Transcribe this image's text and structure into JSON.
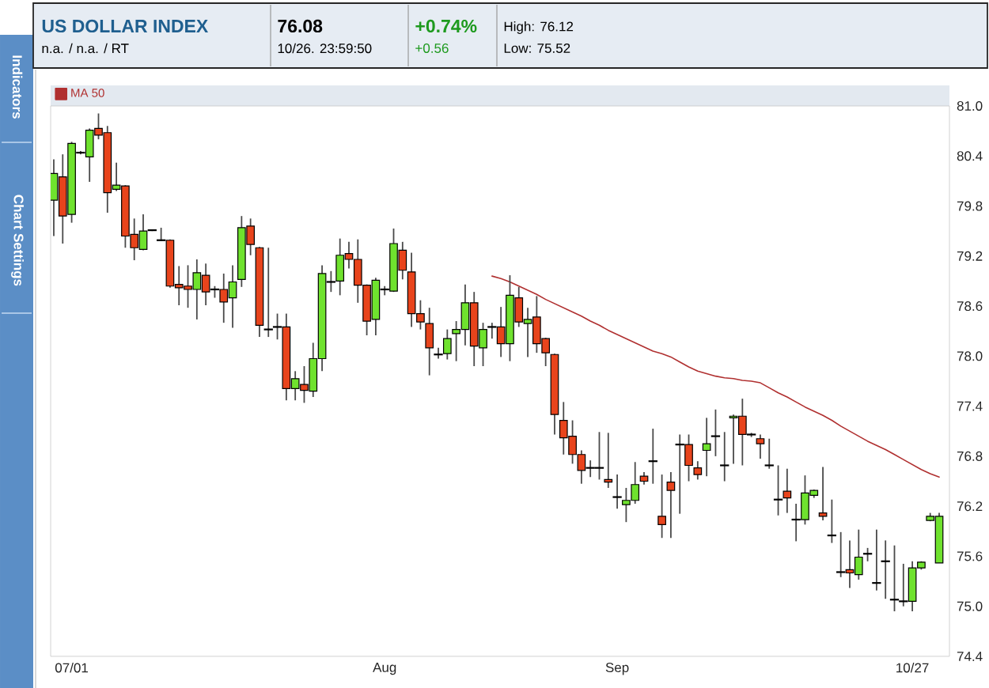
{
  "chart_data": {
    "type": "candlestick",
    "title": "US DOLLAR INDEX",
    "subtitle": "n.a. / n.a. / RT",
    "annotations": [
      "76.08",
      "10/26. 23:59:50",
      "+0.74%",
      "+0.56",
      "High: 76.12",
      "Low: 75.52",
      "Indicators",
      "Chart Settings"
    ],
    "categories": [
      null,
      null,
      "07/01",
      null,
      null,
      null,
      null,
      null,
      null,
      null,
      null,
      null,
      null,
      null,
      null,
      null,
      null,
      null,
      null,
      null,
      null,
      null,
      null,
      null,
      null,
      null,
      null,
      null,
      null,
      null,
      null,
      null,
      null,
      null,
      null,
      null,
      null,
      "Aug",
      null,
      null,
      null,
      null,
      null,
      null,
      null,
      null,
      null,
      null,
      null,
      null,
      null,
      null,
      null,
      null,
      null,
      null,
      null,
      null,
      null,
      null,
      null,
      null,
      null,
      "Sep",
      null,
      null,
      null,
      null,
      null,
      null,
      null,
      null,
      null,
      null,
      null,
      null,
      null,
      null,
      null,
      null,
      null,
      null,
      null,
      null,
      null,
      null,
      null,
      null,
      null,
      null,
      null,
      null,
      null,
      null,
      null,
      null,
      "10/27",
      null,
      null,
      null
    ],
    "ohlc": [
      [
        79.87,
        80.36,
        79.44,
        80.19
      ],
      [
        80.15,
        80.42,
        79.35,
        79.68
      ],
      [
        79.7,
        80.57,
        79.6,
        80.55
      ],
      [
        80.44,
        80.46,
        80.42,
        80.44
      ],
      [
        80.39,
        80.73,
        80.09,
        80.71
      ],
      [
        80.73,
        80.91,
        80.6,
        80.65
      ],
      [
        80.68,
        80.76,
        79.72,
        79.96
      ],
      [
        80.0,
        80.32,
        79.98,
        80.05
      ],
      [
        80.04,
        80.05,
        79.3,
        79.44
      ],
      [
        79.46,
        79.65,
        79.15,
        79.3
      ],
      [
        79.28,
        79.7,
        79.27,
        79.5
      ],
      [
        79.51,
        79.52,
        79.5,
        79.51
      ],
      [
        79.39,
        79.54,
        79.38,
        79.39
      ],
      [
        79.39,
        79.4,
        78.82,
        78.84
      ],
      [
        78.86,
        79.08,
        78.61,
        78.82
      ],
      [
        78.84,
        79.09,
        78.58,
        78.8
      ],
      [
        78.8,
        79.16,
        78.44,
        79.0
      ],
      [
        78.97,
        79.11,
        78.61,
        78.77
      ],
      [
        78.8,
        78.84,
        78.7,
        78.8
      ],
      [
        78.8,
        78.99,
        78.4,
        78.65
      ],
      [
        78.7,
        79.09,
        78.34,
        78.89
      ],
      [
        78.92,
        79.68,
        78.83,
        79.54
      ],
      [
        79.56,
        79.65,
        79.21,
        79.34
      ],
      [
        79.3,
        79.31,
        78.23,
        78.37
      ],
      [
        78.32,
        79.3,
        78.23,
        78.32
      ],
      [
        78.35,
        78.51,
        78.2,
        78.35
      ],
      [
        78.35,
        78.51,
        77.47,
        77.61
      ],
      [
        77.61,
        77.82,
        77.47,
        77.73
      ],
      [
        77.66,
        77.88,
        77.44,
        77.59
      ],
      [
        77.58,
        78.16,
        77.51,
        77.97
      ],
      [
        77.97,
        79.09,
        77.82,
        78.99
      ],
      [
        78.89,
        79.02,
        78.77,
        78.89
      ],
      [
        78.9,
        79.41,
        78.73,
        79.21
      ],
      [
        79.23,
        79.37,
        79.05,
        79.16
      ],
      [
        79.16,
        79.4,
        78.64,
        78.85
      ],
      [
        78.85,
        78.86,
        78.25,
        78.42
      ],
      [
        78.44,
        78.94,
        78.25,
        78.91
      ],
      [
        78.8,
        78.84,
        78.73,
        78.8
      ],
      [
        78.78,
        79.53,
        78.77,
        79.35
      ],
      [
        79.27,
        79.37,
        78.92,
        79.03
      ],
      [
        79.01,
        79.24,
        78.35,
        78.51
      ],
      [
        78.51,
        78.67,
        78.32,
        78.41
      ],
      [
        78.39,
        78.58,
        77.77,
        78.1
      ],
      [
        78.02,
        78.1,
        77.97,
        78.02
      ],
      [
        78.03,
        78.32,
        77.96,
        78.21
      ],
      [
        78.27,
        78.42,
        77.94,
        78.32
      ],
      [
        78.32,
        78.86,
        78.13,
        78.64
      ],
      [
        78.64,
        78.77,
        77.88,
        78.12
      ],
      [
        78.1,
        78.4,
        77.88,
        78.32
      ],
      [
        78.35,
        78.4,
        78.21,
        78.35
      ],
      [
        78.35,
        78.59,
        77.99,
        78.15
      ],
      [
        78.15,
        78.97,
        77.94,
        78.73
      ],
      [
        78.7,
        78.83,
        78.35,
        78.41
      ],
      [
        78.39,
        78.58,
        77.99,
        78.44
      ],
      [
        78.47,
        78.72,
        78.04,
        78.15
      ],
      [
        78.21,
        78.22,
        77.88,
        78.04
      ],
      [
        78.02,
        78.03,
        77.06,
        77.3
      ],
      [
        77.23,
        77.45,
        76.82,
        77.02
      ],
      [
        77.04,
        77.23,
        76.71,
        76.82
      ],
      [
        76.82,
        76.87,
        76.47,
        76.63
      ],
      [
        76.66,
        76.75,
        76.55,
        76.66
      ],
      [
        76.66,
        77.09,
        76.52,
        76.66
      ],
      [
        76.52,
        77.08,
        76.42,
        76.49
      ],
      [
        76.31,
        76.58,
        76.17,
        76.31
      ],
      [
        76.22,
        76.42,
        76.01,
        76.27
      ],
      [
        76.27,
        76.73,
        76.23,
        76.46
      ],
      [
        76.56,
        76.61,
        76.46,
        76.5
      ],
      [
        76.74,
        77.13,
        76.47,
        76.74
      ],
      [
        76.08,
        76.58,
        75.82,
        75.98
      ],
      [
        76.49,
        76.61,
        75.82,
        76.39
      ],
      [
        76.94,
        77.06,
        76.11,
        76.94
      ],
      [
        76.94,
        77.06,
        76.5,
        76.69
      ],
      [
        76.66,
        76.74,
        76.52,
        76.58
      ],
      [
        76.87,
        77.26,
        76.56,
        76.95
      ],
      [
        77.04,
        77.36,
        76.8,
        77.04
      ],
      [
        76.69,
        77.09,
        76.5,
        76.69
      ],
      [
        77.26,
        77.3,
        76.71,
        77.28
      ],
      [
        77.28,
        77.49,
        76.69,
        77.06
      ],
      [
        77.06,
        77.08,
        77.03,
        77.06
      ],
      [
        77.01,
        77.06,
        76.77,
        76.95
      ],
      [
        76.69,
        77.01,
        76.65,
        76.69
      ],
      [
        76.28,
        76.69,
        76.09,
        76.28
      ],
      [
        76.38,
        76.65,
        76.12,
        76.3
      ],
      [
        76.04,
        76.23,
        75.78,
        76.04
      ],
      [
        76.04,
        76.57,
        75.98,
        76.36
      ],
      [
        76.33,
        76.4,
        76.3,
        76.39
      ],
      [
        76.12,
        76.67,
        76.03,
        76.08
      ],
      [
        75.85,
        76.28,
        75.76,
        75.85
      ],
      [
        75.41,
        75.89,
        75.35,
        75.41
      ],
      [
        75.44,
        75.79,
        75.22,
        75.4
      ],
      [
        75.38,
        75.92,
        75.32,
        75.59
      ],
      [
        75.63,
        75.7,
        75.54,
        75.63
      ],
      [
        75.28,
        75.92,
        75.19,
        75.28
      ],
      [
        75.54,
        75.79,
        75.09,
        75.54
      ],
      [
        75.08,
        75.73,
        74.94,
        75.08
      ],
      [
        75.06,
        75.51,
        75.0,
        75.06
      ],
      [
        75.06,
        75.54,
        74.94,
        75.46
      ],
      [
        75.46,
        75.54,
        75.44,
        75.53
      ],
      [
        76.03,
        76.12,
        76.02,
        76.08
      ],
      [
        75.52,
        76.12,
        75.52,
        76.08
      ]
    ],
    "colors": [
      "#6fe22e",
      "#e8441c",
      "#6fe22e",
      "#000000",
      "#6fe22e",
      "#e8441c",
      "#e8441c",
      "#6fe22e",
      "#e8441c",
      "#e8441c",
      "#6fe22e",
      "#000000",
      "#000000",
      "#e8441c",
      "#e8441c",
      "#e8441c",
      "#6fe22e",
      "#e8441c",
      "#000000",
      "#e8441c",
      "#6fe22e",
      "#6fe22e",
      "#e8441c",
      "#e8441c",
      "#000000",
      "#000000",
      "#e8441c",
      "#6fe22e",
      "#e8441c",
      "#6fe22e",
      "#6fe22e",
      "#000000",
      "#6fe22e",
      "#e8441c",
      "#e8441c",
      "#e8441c",
      "#6fe22e",
      "#000000",
      "#6fe22e",
      "#e8441c",
      "#e8441c",
      "#e8441c",
      "#e8441c",
      "#000000",
      "#6fe22e",
      "#6fe22e",
      "#6fe22e",
      "#e8441c",
      "#6fe22e",
      "#000000",
      "#e8441c",
      "#6fe22e",
      "#e8441c",
      "#6fe22e",
      "#e8441c",
      "#e8441c",
      "#e8441c",
      "#e8441c",
      "#e8441c",
      "#e8441c",
      "#000000",
      "#000000",
      "#e8441c",
      "#000000",
      "#6fe22e",
      "#6fe22e",
      "#e8441c",
      "#000000",
      "#e8441c",
      "#e8441c",
      "#000000",
      "#e8441c",
      "#e8441c",
      "#6fe22e",
      "#000000",
      "#000000",
      "#6fe22e",
      "#e8441c",
      "#000000",
      "#e8441c",
      "#000000",
      "#000000",
      "#e8441c",
      "#000000",
      "#6fe22e",
      "#6fe22e",
      "#e8441c",
      "#000000",
      "#000000",
      "#e8441c",
      "#6fe22e",
      "#000000",
      "#000000",
      "#000000",
      "#000000",
      "#000000",
      "#6fe22e",
      "#6fe22e",
      "#6fe22e",
      "#6fe22e"
    ],
    "series": [
      {
        "name": "MA 50",
        "type": "line",
        "color": "#b03030",
        "values": [
          null,
          null,
          null,
          null,
          null,
          null,
          null,
          null,
          null,
          null,
          null,
          null,
          null,
          null,
          null,
          null,
          null,
          null,
          null,
          null,
          null,
          null,
          null,
          null,
          null,
          null,
          null,
          null,
          null,
          null,
          null,
          null,
          null,
          null,
          null,
          null,
          null,
          null,
          null,
          null,
          null,
          null,
          null,
          null,
          null,
          null,
          null,
          null,
          null,
          78.96,
          78.93,
          78.89,
          78.84,
          78.79,
          78.74,
          78.68,
          78.63,
          78.58,
          78.53,
          78.48,
          78.42,
          78.37,
          78.31,
          78.26,
          78.21,
          78.16,
          78.11,
          78.06,
          78.03,
          77.99,
          77.93,
          77.87,
          77.82,
          77.79,
          77.76,
          77.74,
          77.73,
          77.71,
          77.7,
          77.68,
          77.62,
          77.56,
          77.51,
          77.45,
          77.39,
          77.34,
          77.29,
          77.23,
          77.16,
          77.1,
          77.04,
          76.98,
          76.93,
          76.88,
          76.82,
          76.76,
          76.7,
          76.64,
          76.59,
          76.55
        ]
      }
    ],
    "ylim": [
      74.4,
      81.0
    ],
    "yticks": [
      {
        "value": 81.0,
        "label": "81.0"
      },
      80.4,
      79.8,
      79.2,
      78.6,
      {
        "value": 78.0,
        "label": "78.0"
      },
      77.4,
      76.8,
      76.2,
      75.6,
      {
        "value": 75.0,
        "label": "75.0"
      },
      74.4
    ],
    "legend": "top left"
  }
}
